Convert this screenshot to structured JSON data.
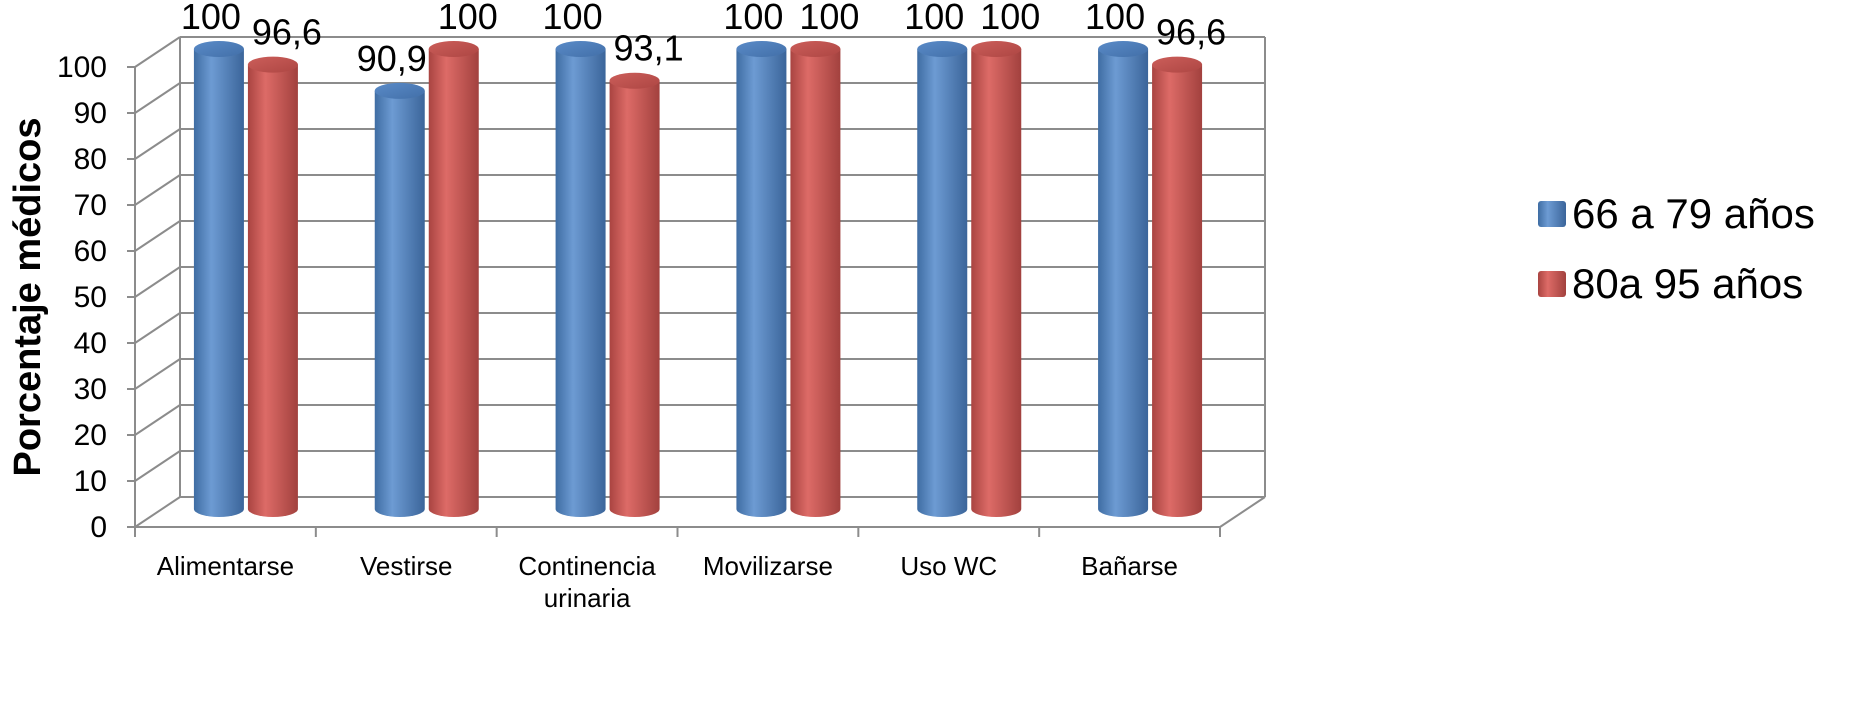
{
  "chart_data": {
    "type": "bar",
    "title": "",
    "xlabel": "",
    "ylabel": "Porcentaje médicos",
    "ylim": [
      0,
      100
    ],
    "yticks": [
      "0",
      "10",
      "20",
      "30",
      "40",
      "50",
      "60",
      "70",
      "80",
      "90",
      "100"
    ],
    "categories": [
      [
        "Alimentarse"
      ],
      [
        "Vestirse"
      ],
      [
        "Continencia",
        "urinaria"
      ],
      [
        "Movilizarse"
      ],
      [
        "Uso WC"
      ],
      [
        "Bañarse"
      ]
    ],
    "series": [
      {
        "name": "66 a 79 años",
        "color": "#4f81bd",
        "values": [
          100,
          90.9,
          100,
          100,
          100,
          100
        ],
        "labels": [
          "100",
          "90,9",
          "100",
          "100",
          "100",
          "100"
        ]
      },
      {
        "name": "80a 95 años",
        "color": "#c0504d",
        "values": [
          96.6,
          100,
          93.1,
          100,
          100,
          96.6
        ],
        "labels": [
          "96,6",
          "100",
          "93,1",
          "100",
          "100",
          "96,6"
        ]
      }
    ],
    "grid": true,
    "legend_position": "right",
    "style": "3d-cylinder"
  }
}
